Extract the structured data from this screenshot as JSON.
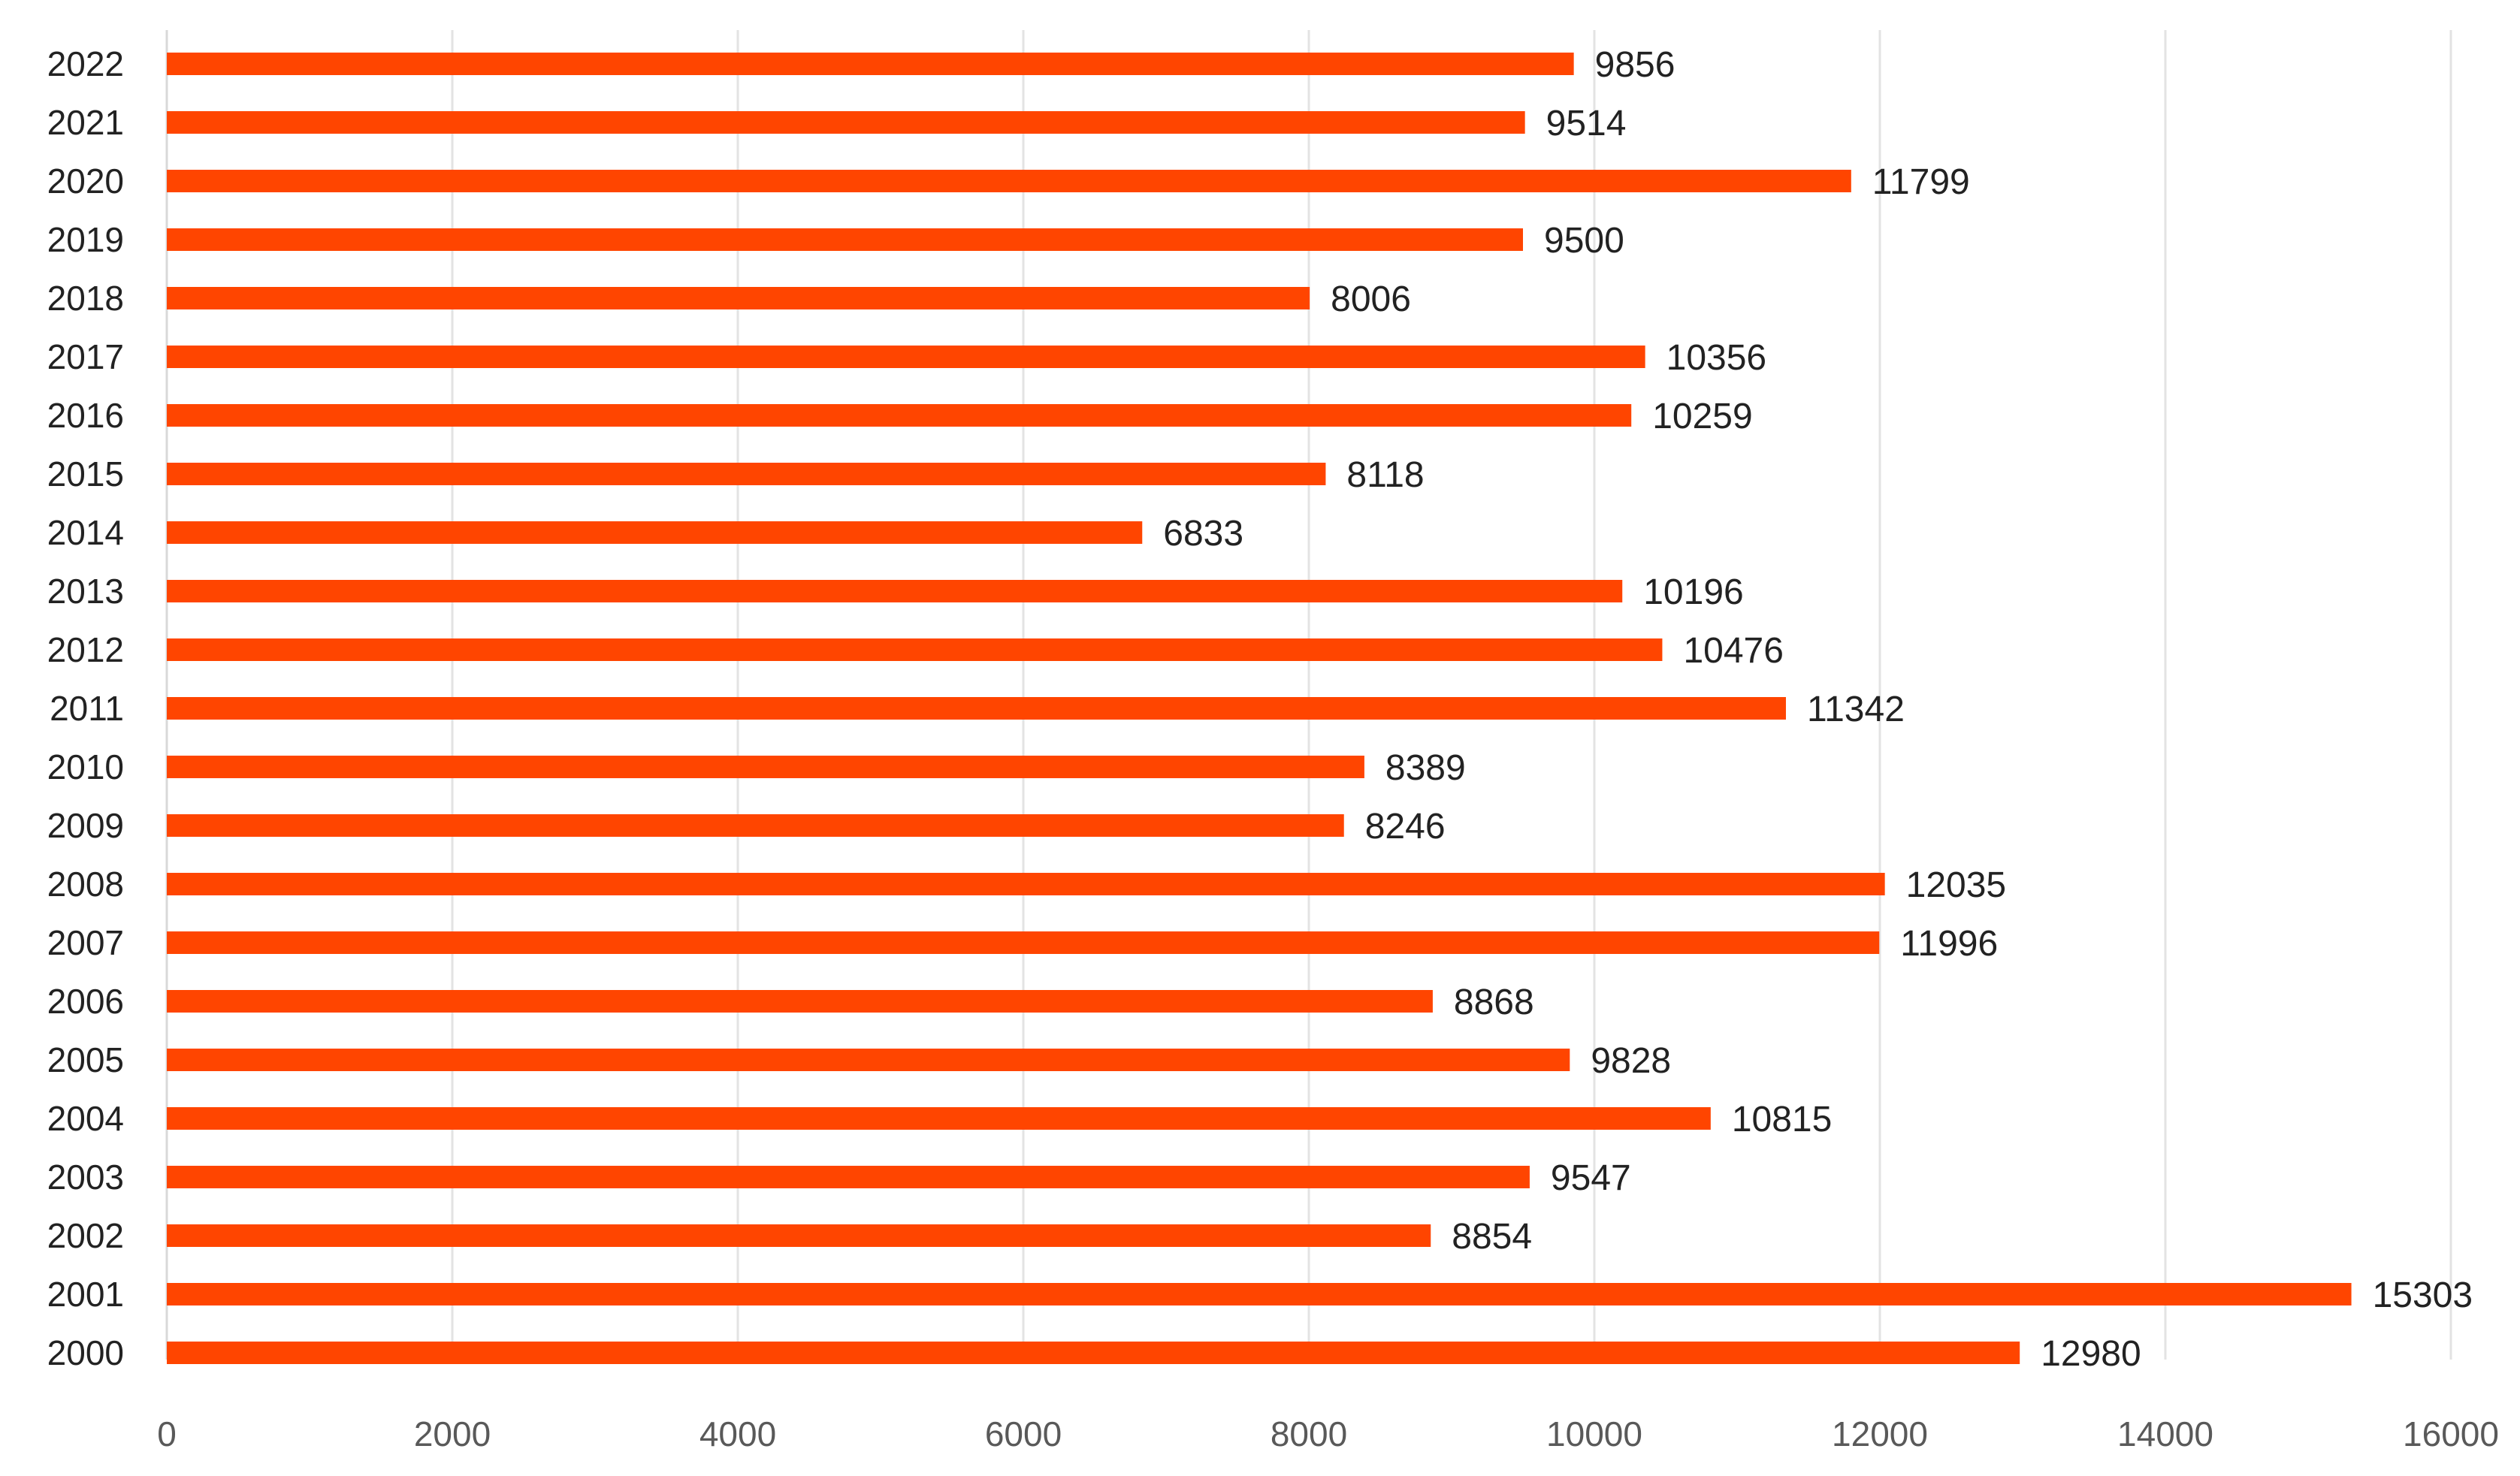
{
  "chart_data": {
    "type": "bar",
    "orientation": "horizontal",
    "title": "",
    "xlabel": "",
    "ylabel": "",
    "xlim": [
      0,
      16000
    ],
    "xticks": [
      0,
      2000,
      4000,
      6000,
      8000,
      10000,
      12000,
      14000,
      16000
    ],
    "xtick_labels": [
      "0",
      "2000",
      "4000",
      "6000",
      "8000",
      "10000",
      "12000",
      "14000",
      "16000"
    ],
    "grid": "vertical",
    "legend": "none",
    "bar_color": "#FF4500",
    "categories": [
      "2022",
      "2021",
      "2020",
      "2019",
      "2018",
      "2017",
      "2016",
      "2015",
      "2014",
      "2013",
      "2012",
      "2011",
      "2010",
      "2009",
      "2008",
      "2007",
      "2006",
      "2005",
      "2004",
      "2003",
      "2002",
      "2001",
      "2000"
    ],
    "values": [
      9856,
      9514,
      11799,
      9500,
      8006,
      10356,
      10259,
      8118,
      6833,
      10196,
      10476,
      11342,
      8389,
      8246,
      12035,
      11996,
      8868,
      9828,
      10815,
      9547,
      8854,
      15303,
      12980
    ],
    "data_labels": [
      "9856",
      "9514",
      "11799",
      "9500",
      "8006",
      "10356",
      "10259",
      "8118",
      "6833",
      "10196",
      "10476",
      "11342",
      "8389",
      "8246",
      "12035",
      "11996",
      "8868",
      "9828",
      "10815",
      "9547",
      "8854",
      "15303",
      "12980"
    ]
  }
}
